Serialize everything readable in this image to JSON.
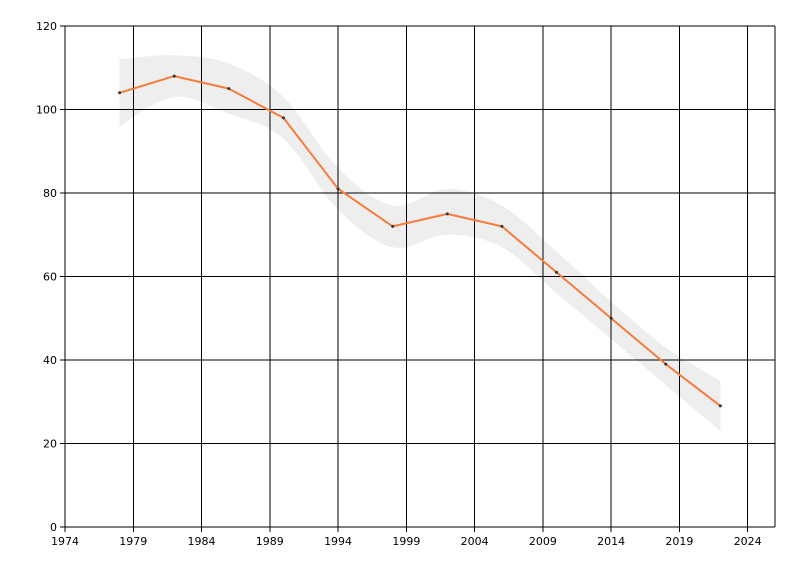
{
  "chart_data": {
    "type": "line",
    "title": "",
    "xlabel": "",
    "ylabel": "",
    "xlim": [
      1974,
      2026
    ],
    "ylim": [
      0,
      120
    ],
    "x_ticks": [
      1974,
      1979,
      1984,
      1989,
      1994,
      1999,
      2004,
      2009,
      2014,
      2019,
      2024
    ],
    "y_ticks": [
      0,
      20,
      40,
      60,
      80,
      100,
      120
    ],
    "grid": true,
    "legend": "none",
    "series": [
      {
        "x": [
          1978,
          1982,
          1986,
          1990,
          1994,
          1998,
          2002,
          2006,
          2010,
          2014,
          2018,
          2022
        ],
        "values": [
          104,
          108,
          105,
          98,
          81,
          72,
          75,
          72,
          61,
          50,
          39,
          29
        ],
        "band_upper": [
          112,
          113,
          111,
          103,
          86,
          77,
          81,
          77,
          66,
          54,
          43,
          35
        ],
        "band_lower": [
          96,
          103,
          99,
          93,
          76,
          67,
          70,
          67,
          56,
          45,
          34,
          23
        ],
        "color": "#f47c3c",
        "band_color": "#eeeeee"
      }
    ]
  }
}
